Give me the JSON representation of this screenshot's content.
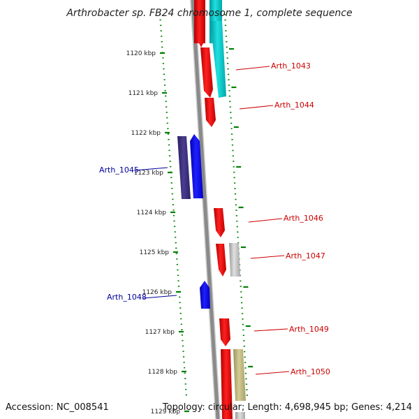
{
  "title": "Arthrobacter sp. FB24 chromosome 1, complete sequence",
  "footer": {
    "accession": "Accession: NC_008541",
    "topology": "Topology: circular; Length: 4,698,945 bp; Genes: 4,214"
  },
  "colors": {
    "forward_gene": "#ff0000",
    "reverse_gene": "#0000ff",
    "label_red": "#cc0000",
    "label_blue": "#000099",
    "tick": "#008000",
    "backbone": "#888888"
  },
  "ticks": [
    {
      "label": "1120 kbp",
      "kbp": 1120
    },
    {
      "label": "1121 kbp",
      "kbp": 1121
    },
    {
      "label": "1122 kbp",
      "kbp": 1122
    },
    {
      "label": "1123 kbp",
      "kbp": 1123
    },
    {
      "label": "1124 kbp",
      "kbp": 1124
    },
    {
      "label": "1125 kbp",
      "kbp": 1125
    },
    {
      "label": "1126 kbp",
      "kbp": 1126
    },
    {
      "label": "1127 kbp",
      "kbp": 1127
    },
    {
      "label": "1128 kbp",
      "kbp": 1128
    },
    {
      "label": "1129 kbp",
      "kbp": 1129
    }
  ],
  "gene_labels": [
    {
      "name": "Arth_1043",
      "side": "right",
      "color": "red"
    },
    {
      "name": "Arth_1044",
      "side": "right",
      "color": "red"
    },
    {
      "name": "Arth_1045",
      "side": "left",
      "color": "blue"
    },
    {
      "name": "Arth_1046",
      "side": "right",
      "color": "red"
    },
    {
      "name": "Arth_1047",
      "side": "right",
      "color": "red"
    },
    {
      "name": "Arth_1048",
      "side": "left",
      "color": "blue"
    },
    {
      "name": "Arth_1049",
      "side": "right",
      "color": "red"
    },
    {
      "name": "Arth_1050",
      "side": "right",
      "color": "red"
    }
  ]
}
